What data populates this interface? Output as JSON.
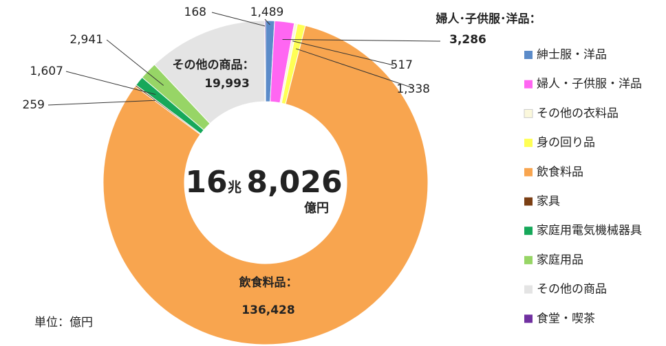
{
  "chart_data": {
    "type": "donut",
    "categories": [
      "紳士服・洋品",
      "婦人・子供服・洋品",
      "その他の衣料品",
      "身の回り品",
      "飲食料品",
      "家具",
      "家庭用電気機械器具",
      "家庭用品",
      "その他の商品",
      "食堂・喫茶"
    ],
    "values": [
      1489,
      3286,
      517,
      1338,
      136428,
      259,
      1607,
      2941,
      19993,
      168
    ],
    "value_labels": [
      "1,489",
      "3,286",
      "517",
      "1,338",
      "136,428",
      "259",
      "1,607",
      "2,941",
      "19,993",
      "168"
    ],
    "colors": [
      "#5b8bc9",
      "#ff66f2",
      "#fbf8dc",
      "#ffff55",
      "#f8a54f",
      "#7b3f14",
      "#16a85a",
      "#97d566",
      "#e4e4e4",
      "#7030a0"
    ],
    "annotations": [
      "婦人･子供服･洋品：",
      "その他の商品：",
      "飲食料品："
    ],
    "center": {
      "main": "16",
      "unit1": "兆",
      "sub": "8,026",
      "unit2": "億円"
    },
    "note": "単位：億円",
    "legend": "right"
  }
}
